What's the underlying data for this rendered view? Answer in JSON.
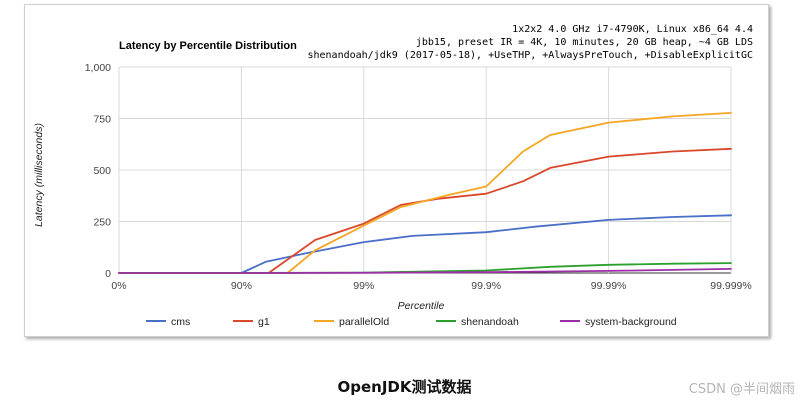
{
  "chart_data": {
    "type": "line",
    "title": "Latency by Percentile Distribution",
    "meta_lines": [
      "1x2x2 4.0 GHz i7-4790K, Linux x86_64 4.4",
      "jbb15, preset IR = 4K, 10 minutes, 20 GB heap, ~4 GB LDS",
      "shenandoah/jdk9 (2017-05-18), +UseTHP, +AlwaysPreTouch, +DisableExplicitGC"
    ],
    "xlabel": "Percentile",
    "ylabel": "Latency (milliseconds)",
    "x_scale": "log-percentile",
    "x_ticks": [
      "0%",
      "90%",
      "99%",
      "99.9%",
      "99.99%",
      "99.999%"
    ],
    "y_ticks": [
      "0",
      "250",
      "500",
      "750",
      "1,000"
    ],
    "ylim": [
      0,
      1000
    ],
    "grid": true,
    "legend_position": "bottom",
    "series": [
      {
        "name": "cms",
        "color": "#4a6fc7",
        "x": [
          "0%",
          "90%",
          "93.7%",
          "97%",
          "99%",
          "99.6%",
          "99.9%",
          "99.96%",
          "99.99%",
          "99.997%",
          "99.999%"
        ],
        "values": [
          0,
          0,
          55,
          95,
          150,
          180,
          198,
          225,
          258,
          272,
          280
        ]
      },
      {
        "name": "g1",
        "color": "#d9482b",
        "x": [
          "0%",
          "90%",
          "94%",
          "97.5%",
          "99%",
          "99.5%",
          "99.75%",
          "99.9%",
          "99.95%",
          "99.97%",
          "99.99%",
          "99.997%",
          "99.999%"
        ],
        "values": [
          0,
          0,
          0,
          160,
          240,
          330,
          360,
          385,
          445,
          510,
          565,
          590,
          603
        ]
      },
      {
        "name": "parallelOld",
        "color": "#f5a623",
        "x": [
          "0%",
          "90%",
          "95.8%",
          "97.5%",
          "99%",
          "99.5%",
          "99.8%",
          "99.9%",
          "99.95%",
          "99.97%",
          "99.99%",
          "99.997%",
          "99.999%"
        ],
        "values": [
          0,
          0,
          0,
          110,
          230,
          320,
          380,
          420,
          590,
          670,
          730,
          760,
          777
        ]
      },
      {
        "name": "shenandoah",
        "color": "#2ca02c",
        "x": [
          "0%",
          "90%",
          "99%",
          "99.9%",
          "99.97%",
          "99.99%",
          "99.997%",
          "99.999%"
        ],
        "values": [
          0,
          0,
          2,
          12,
          30,
          40,
          45,
          48
        ]
      },
      {
        "name": "system-background",
        "color": "#9b2fa8",
        "x": [
          "0%",
          "90%",
          "99%",
          "99.9%",
          "99.99%",
          "99.997%",
          "99.999%"
        ],
        "values": [
          0,
          0,
          1,
          4,
          10,
          15,
          20
        ]
      }
    ]
  },
  "caption": "OpenJDK测试数据",
  "watermark": "CSDN @半间烟雨"
}
